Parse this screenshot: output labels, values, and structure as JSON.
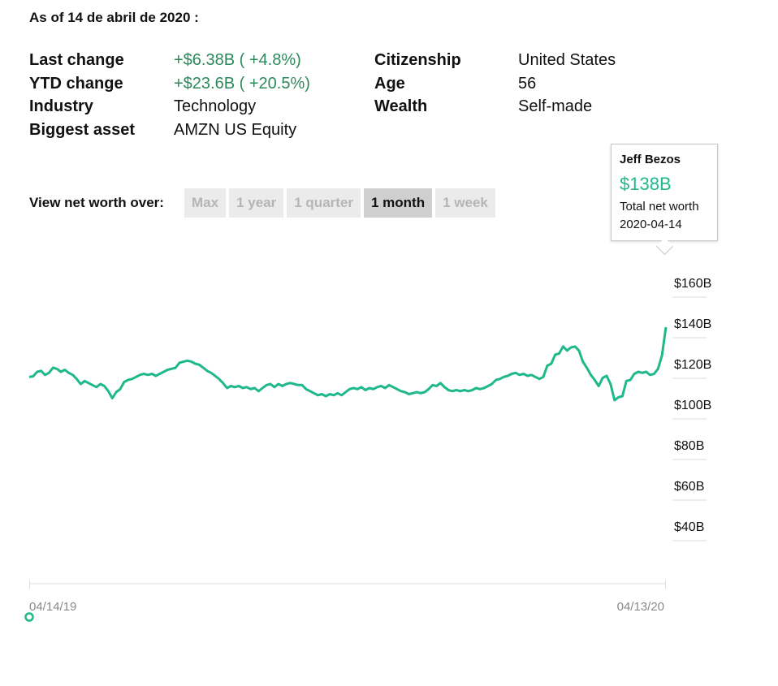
{
  "as_of": "As of 14 de abril de 2020 :",
  "stats_left": [
    {
      "label": "Last change",
      "value": "+$6.38B ( +4.8%)",
      "green": true
    },
    {
      "label": "YTD change",
      "value": "+$23.6B ( +20.5%)",
      "green": true
    },
    {
      "label": "Industry",
      "value": "Technology",
      "green": false
    },
    {
      "label": "Biggest asset",
      "value": "AMZN US Equity",
      "green": false
    }
  ],
  "stats_right": [
    {
      "label": "Citizenship",
      "value": "United States"
    },
    {
      "label": "Age",
      "value": "56"
    },
    {
      "label": "Wealth",
      "value": "Self-made"
    }
  ],
  "range": {
    "label": "View net worth over:",
    "options": [
      "Max",
      "1 year",
      "1 quarter",
      "1 month",
      "1 week"
    ],
    "active": "1 month"
  },
  "tooltip": {
    "name": "Jeff Bezos",
    "value": "$138B",
    "desc": "Total net worth",
    "date": "2020-04-14"
  },
  "colors": {
    "line": "#1fb88a",
    "green_text": "#2b8a5a"
  },
  "chart_data": {
    "type": "line",
    "title": "",
    "xlabel": "",
    "ylabel": "",
    "ylim": [
      30,
      170
    ],
    "yticks": [
      {
        "value": 160,
        "label": "$160B"
      },
      {
        "value": 140,
        "label": "$140B"
      },
      {
        "value": 120,
        "label": "$120B"
      },
      {
        "value": 100,
        "label": "$100B"
      },
      {
        "value": 80,
        "label": "$80B"
      },
      {
        "value": 60,
        "label": "$60B"
      },
      {
        "value": 40,
        "label": "$40B"
      }
    ],
    "xticks": [
      {
        "label": "04/14/19",
        "position": "start"
      },
      {
        "label": "04/13/20",
        "position": "end"
      }
    ],
    "x_range": [
      "2019-04-14",
      "2020-04-14"
    ],
    "series": [
      {
        "values": [
          113.5,
          113.8,
          116.0,
          116.5,
          114.5,
          115.5,
          118.0,
          117.5,
          116.0,
          117.0,
          115.5,
          114.5,
          112.5,
          110.0,
          111.5,
          110.5,
          109.5,
          108.5,
          110.0,
          109.0,
          106.5,
          103.0,
          106.0,
          107.5,
          111.0,
          112.0,
          112.5,
          113.5,
          114.5,
          115.0,
          114.5,
          115.0,
          114.0,
          115.0,
          116.0,
          117.0,
          117.5,
          118.0,
          120.5,
          121.0,
          121.5,
          121.0,
          120.0,
          119.5,
          118.0,
          116.5,
          115.5,
          114.0,
          112.5,
          110.5,
          108.0,
          109.0,
          108.5,
          109.0,
          108.0,
          108.5,
          107.5,
          108.0,
          106.5,
          108.0,
          109.5,
          110.0,
          108.5,
          110.0,
          109.0,
          110.0,
          110.5,
          110.0,
          109.5,
          109.5,
          107.5,
          106.5,
          105.5,
          104.5,
          105.0,
          104.0,
          105.0,
          104.5,
          105.5,
          104.5,
          106.0,
          107.5,
          108.0,
          107.5,
          108.5,
          107.0,
          108.0,
          107.5,
          108.5,
          109.0,
          108.0,
          109.5,
          108.5,
          107.5,
          106.5,
          106.0,
          105.0,
          105.5,
          106.0,
          105.5,
          106.0,
          107.5,
          109.5,
          109.0,
          110.5,
          108.5,
          107.0,
          106.5,
          107.0,
          106.5,
          107.0,
          106.5,
          107.0,
          108.0,
          107.5,
          108.0,
          109.0,
          110.0,
          112.0,
          112.5,
          113.5,
          114.0,
          115.0,
          115.5,
          114.5,
          115.0,
          114.0,
          114.5,
          113.5,
          112.5,
          113.5,
          119.0,
          120.0,
          124.5,
          125.0,
          128.5,
          126.5,
          128.0,
          128.5,
          126.5,
          121.0,
          118.0,
          114.5,
          112.0,
          109.0,
          113.0,
          114.0,
          110.0,
          102.0,
          103.5,
          104.0,
          111.5,
          112.0,
          115.0,
          116.0,
          115.5,
          116.0,
          114.5,
          115.0,
          117.5,
          124.0,
          138.0
        ]
      }
    ]
  }
}
